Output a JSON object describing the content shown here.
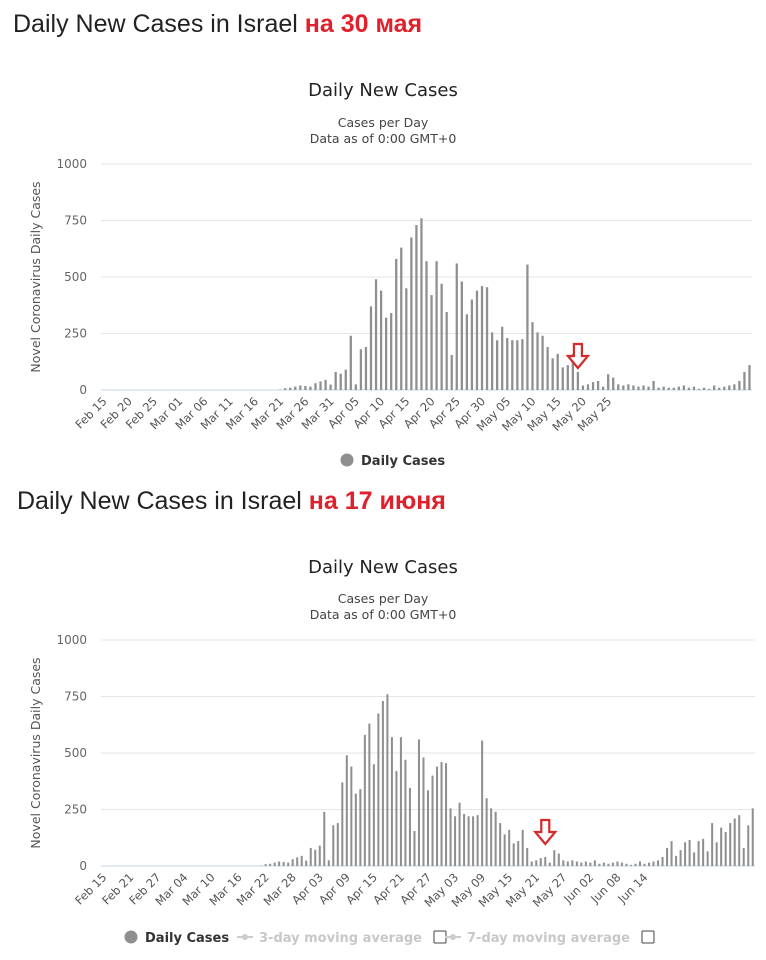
{
  "headings": [
    {
      "title": "Daily New Cases in Israel",
      "date": "на 30 мая"
    },
    {
      "title": "Daily New Cases in Israel",
      "date": "на 17 июня"
    }
  ],
  "colors": {
    "bar": "#8f8f8f",
    "grid": "#e6e6e6",
    "arrow": "#d62a2a",
    "accent": "#e0202a"
  },
  "chart_data": [
    {
      "type": "bar",
      "title": "Daily New Cases",
      "subtitle": "Cases per Day",
      "subtitle2": "Data as of 0:00 GMT+0",
      "ylabel": "Novel Coronavirus Daily Cases",
      "ylim": [
        0,
        1000
      ],
      "yticks": [
        0,
        250,
        500,
        750,
        1000
      ],
      "start_date": "Feb 15",
      "xticks": [
        "Feb 15",
        "Feb 20",
        "Feb 25",
        "Mar 01",
        "Mar 06",
        "Mar 11",
        "Mar 16",
        "Mar 21",
        "Mar 26",
        "Mar 31",
        "Apr 05",
        "Apr 10",
        "Apr 15",
        "Apr 20",
        "Apr 25",
        "Apr 30",
        "May 05",
        "May 10",
        "May 15",
        "May 20",
        "May 25"
      ],
      "legend": [
        {
          "label": "Daily Cases",
          "active": true
        }
      ],
      "annotation": {
        "type": "arrow",
        "at": "May 19"
      },
      "values": [
        0,
        0,
        0,
        0,
        0,
        0,
        0,
        0,
        0,
        0,
        0,
        0,
        0,
        0,
        0,
        0,
        0,
        0,
        0,
        0,
        0,
        0,
        0,
        0,
        0,
        0,
        0,
        0,
        0,
        0,
        0,
        0,
        0,
        0,
        0,
        2,
        8,
        10,
        15,
        20,
        18,
        15,
        30,
        38,
        45,
        24,
        80,
        72,
        90,
        240,
        25,
        180,
        190,
        370,
        490,
        440,
        320,
        340,
        580,
        630,
        450,
        675,
        730,
        760,
        570,
        420,
        570,
        470,
        345,
        155,
        560,
        480,
        335,
        400,
        440,
        460,
        455,
        255,
        220,
        280,
        230,
        220,
        220,
        225,
        555,
        300,
        255,
        240,
        190,
        140,
        160,
        100,
        110,
        160,
        80,
        20,
        25,
        35,
        40,
        15,
        70,
        55,
        25,
        20,
        25,
        20,
        15,
        20,
        15,
        40,
        10,
        15,
        10,
        10,
        15,
        20,
        10,
        15,
        5,
        10,
        5,
        20,
        10,
        15,
        20,
        25,
        40,
        80,
        110
      ]
    },
    {
      "type": "bar",
      "title": "Daily New Cases",
      "subtitle": "Cases per Day",
      "subtitle2": "Data as of 0:00 GMT+0",
      "ylabel": "Novel Coronavirus Daily Cases",
      "ylim": [
        0,
        1000
      ],
      "yticks": [
        0,
        250,
        500,
        750,
        1000
      ],
      "start_date": "Feb 15",
      "xticks": [
        "Feb 15",
        "Feb 21",
        "Feb 27",
        "Mar 04",
        "Mar 10",
        "Mar 16",
        "Mar 22",
        "Mar 28",
        "Apr 03",
        "Apr 09",
        "Apr 15",
        "Apr 21",
        "Apr 27",
        "May 03",
        "May 09",
        "May 15",
        "May 21",
        "May 27",
        "Jun 02",
        "Jun 08",
        "Jun 14"
      ],
      "legend": [
        {
          "label": "Daily Cases",
          "active": true
        },
        {
          "label": "3-day moving average",
          "active": false
        },
        {
          "label": "7-day moving average",
          "active": false
        }
      ],
      "annotation": {
        "type": "arrow",
        "at": "May 23"
      },
      "values": [
        0,
        0,
        0,
        0,
        0,
        0,
        0,
        0,
        0,
        0,
        0,
        0,
        0,
        0,
        0,
        0,
        0,
        0,
        0,
        0,
        0,
        0,
        0,
        0,
        0,
        0,
        0,
        0,
        0,
        0,
        0,
        0,
        0,
        0,
        0,
        2,
        8,
        10,
        15,
        20,
        18,
        15,
        30,
        38,
        45,
        24,
        80,
        72,
        90,
        240,
        25,
        180,
        190,
        370,
        490,
        440,
        320,
        340,
        580,
        630,
        450,
        675,
        730,
        760,
        570,
        420,
        570,
        470,
        345,
        155,
        560,
        480,
        335,
        400,
        440,
        460,
        455,
        255,
        220,
        280,
        230,
        220,
        220,
        225,
        555,
        300,
        255,
        240,
        190,
        140,
        160,
        100,
        110,
        160,
        80,
        20,
        25,
        35,
        40,
        15,
        70,
        55,
        25,
        20,
        25,
        20,
        15,
        20,
        15,
        25,
        10,
        15,
        10,
        15,
        20,
        15,
        10,
        5,
        10,
        20,
        10,
        15,
        20,
        25,
        40,
        80,
        110,
        45,
        70,
        105,
        115,
        60,
        110,
        120,
        65,
        190,
        105,
        170,
        150,
        190,
        210,
        225,
        80,
        180,
        255
      ]
    }
  ]
}
